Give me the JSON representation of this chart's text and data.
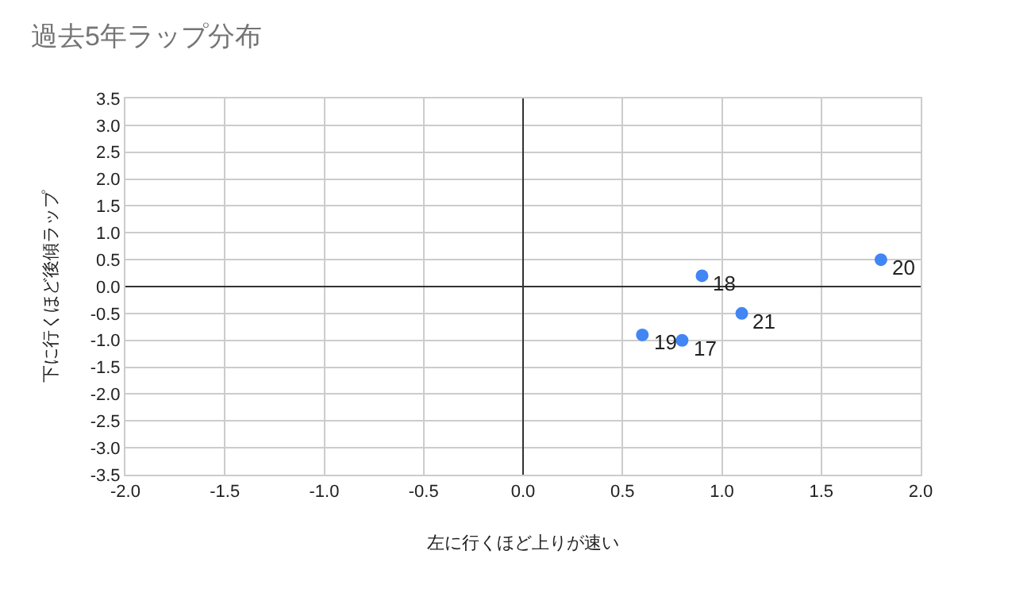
{
  "chart_data": {
    "type": "scatter",
    "title": "過去5年ラップ分布",
    "xlabel": "左に行くほど上りが速い",
    "ylabel": "下に行くほど後傾ラップ",
    "x": [
      0.8,
      0.9,
      0.6,
      1.8,
      1.1
    ],
    "series": [
      {
        "color": "#4285f4",
        "values": [
          -1.0,
          0.2,
          -0.9,
          0.5,
          -0.5
        ]
      }
    ],
    "annotations": [
      {
        "text": "17",
        "x": 0.8,
        "y": -1.0
      },
      {
        "text": "18",
        "x": 0.9,
        "y": 0.2
      },
      {
        "text": "19",
        "x": 0.6,
        "y": -0.9
      },
      {
        "text": "20",
        "x": 1.8,
        "y": 0.5
      },
      {
        "text": "21",
        "x": 1.1,
        "y": -0.5
      }
    ],
    "xlim": [
      -2,
      2
    ],
    "xticks": [
      {
        "value": -2,
        "label": "-2.0"
      },
      {
        "value": -1.5,
        "label": "-1.5"
      },
      {
        "value": -1,
        "label": "-1.0"
      },
      {
        "value": -0.5,
        "label": "-0.5"
      },
      {
        "value": 0,
        "label": "0.0"
      },
      {
        "value": 0.5,
        "label": "0.5"
      },
      {
        "value": 1,
        "label": "1.0"
      },
      {
        "value": 1.5,
        "label": "1.5"
      },
      {
        "value": 2,
        "label": "2.0"
      }
    ],
    "ylim": [
      -3.5,
      3.5
    ],
    "yticks": [
      {
        "value": -3.5,
        "label": "-3.5"
      },
      {
        "value": -3,
        "label": "-3.0"
      },
      {
        "value": -2.5,
        "label": "-2.5"
      },
      {
        "value": -2,
        "label": "-2.0"
      },
      {
        "value": -1.5,
        "label": "-1.5"
      },
      {
        "value": -1,
        "label": "-1.0"
      },
      {
        "value": -0.5,
        "label": "-0.5"
      },
      {
        "value": 0,
        "label": "0.0"
      },
      {
        "value": 0.5,
        "label": "0.5"
      },
      {
        "value": 1,
        "label": "1.0"
      },
      {
        "value": 1.5,
        "label": "1.5"
      },
      {
        "value": 2,
        "label": "2.0"
      },
      {
        "value": 2.5,
        "label": "2.5"
      },
      {
        "value": 3,
        "label": "3.0"
      },
      {
        "value": 3.5,
        "label": "3.5"
      }
    ],
    "grid": true,
    "marker": "circle"
  }
}
